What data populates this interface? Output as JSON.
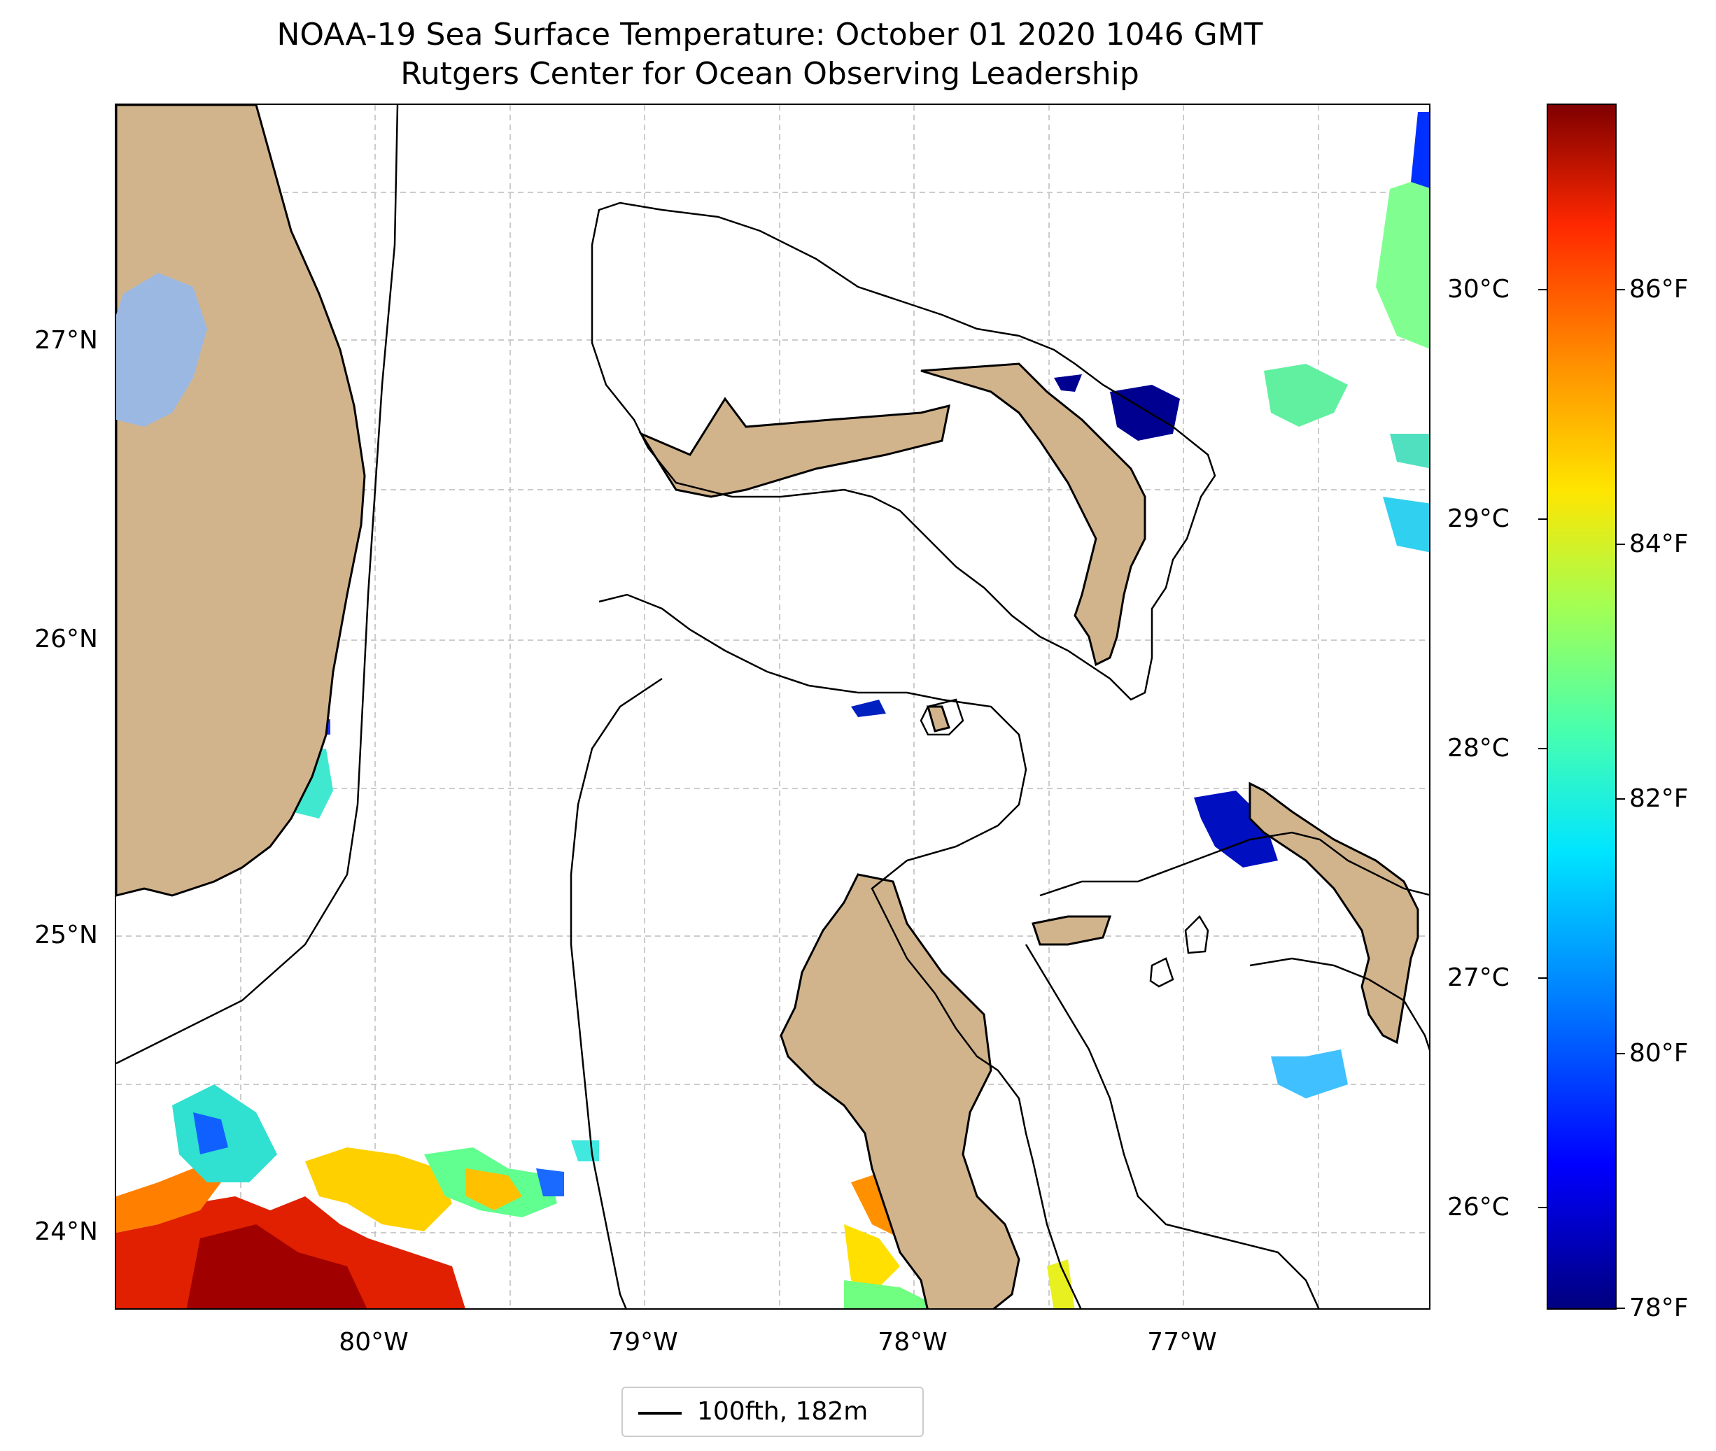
{
  "title": "NOAA-19 Sea Surface Temperature: October 01 2020 1046 GMT",
  "subtitle": "Rutgers Center for Ocean Observing Leadership",
  "map": {
    "lat_ticks": [
      "27°N",
      "26°N",
      "25°N",
      "24°N"
    ],
    "lon_ticks": [
      "80°W",
      "79°W",
      "78°W",
      "77°W"
    ],
    "land_color": "#d2b48c",
    "lake_color": "#9bb8e3",
    "contour_color": "#000000"
  },
  "colorbar": {
    "celsius_ticks": [
      "30°C",
      "29°C",
      "28°C",
      "27°C",
      "26°C"
    ],
    "fahrenheit_ticks": [
      "86°F",
      "84°F",
      "82°F",
      "80°F",
      "78°F"
    ],
    "colormap": "jet"
  },
  "legend": {
    "label": "100fth, 182m"
  }
}
